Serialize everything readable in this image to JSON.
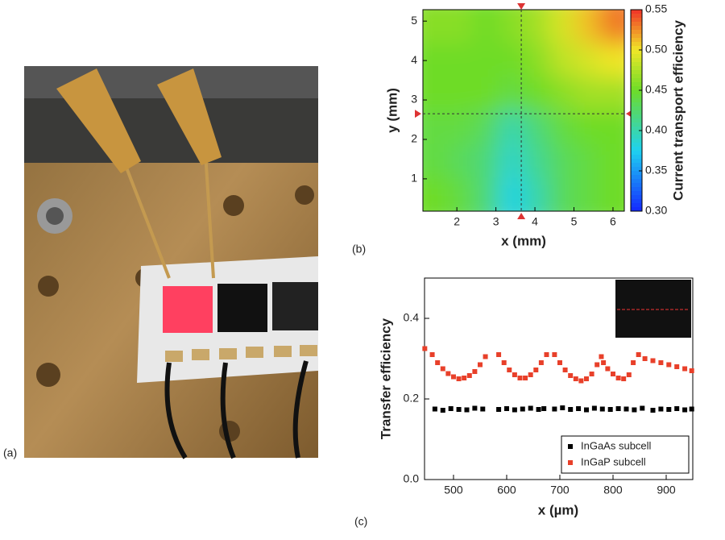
{
  "panel_labels": [
    "(a)",
    "(b)",
    "(c)"
  ],
  "chart_data": [
    {
      "type": "heatmap",
      "xlabel": "x (mm)",
      "ylabel": "y (mm)",
      "colorbar_label": "Current transport efficiency",
      "xlim": [
        1.13,
        6.29
      ],
      "xticks": [
        2,
        3,
        4,
        5,
        6
      ],
      "ylim": [
        0.18,
        5.29
      ],
      "yticks": [
        1,
        2,
        3,
        4,
        5
      ],
      "clim": [
        0.3,
        0.55
      ],
      "cticks": [
        {
          "value": 0.3,
          "label": "0.30"
        },
        0.35,
        {
          "value": 0.4,
          "label": "0.40"
        },
        0.45,
        {
          "value": 0.5,
          "label": "0.50"
        },
        0.55
      ],
      "crosshair": {
        "x": 3.65,
        "y": 2.65
      },
      "z": [
        [
          0.46,
          0.46,
          0.45,
          0.46,
          0.47,
          0.49,
          0.51,
          0.53
        ],
        [
          0.45,
          0.45,
          0.45,
          0.45,
          0.46,
          0.48,
          0.49,
          0.5
        ],
        [
          0.45,
          0.45,
          0.45,
          0.44,
          0.45,
          0.46,
          0.47,
          0.47
        ],
        [
          0.44,
          0.44,
          0.43,
          0.4,
          0.42,
          0.44,
          0.45,
          0.45
        ],
        [
          0.44,
          0.43,
          0.42,
          0.39,
          0.41,
          0.43,
          0.44,
          0.45
        ],
        [
          0.45,
          0.44,
          0.42,
          0.38,
          0.4,
          0.43,
          0.44,
          0.45
        ]
      ]
    },
    {
      "type": "scatter",
      "xlabel": "x (µm)",
      "ylabel": "Transfer efficiency",
      "xlim": [
        445.5,
        950
      ],
      "xticks": [
        500,
        600,
        700,
        800,
        900
      ],
      "ylim": [
        0,
        0.5
      ],
      "yticks": [
        {
          "value": 0,
          "label": "0.0"
        },
        0.2,
        0.4
      ],
      "legend": "lower right",
      "series": [
        {
          "name": "InGaAs subcell",
          "color": "#000000",
          "x": [
            465,
            480,
            495,
            510,
            525,
            540,
            555,
            585,
            600,
            615,
            630,
            645,
            660,
            670,
            690,
            705,
            720,
            735,
            750,
            765,
            780,
            795,
            810,
            825,
            840,
            855,
            875,
            890,
            905,
            920,
            935,
            948
          ],
          "values": [
            0.175,
            0.172,
            0.176,
            0.174,
            0.173,
            0.177,
            0.175,
            0.174,
            0.176,
            0.173,
            0.175,
            0.177,
            0.174,
            0.176,
            0.175,
            0.178,
            0.174,
            0.176,
            0.173,
            0.177,
            0.175,
            0.174,
            0.176,
            0.175,
            0.173,
            0.177,
            0.172,
            0.175,
            0.174,
            0.176,
            0.173,
            0.175
          ]
        },
        {
          "name": "InGaP subcell",
          "color": "#e8402a",
          "x": [
            446,
            460,
            470,
            480,
            490,
            500,
            510,
            520,
            530,
            540,
            550,
            560,
            585,
            595,
            605,
            615,
            625,
            635,
            645,
            655,
            665,
            675,
            690,
            700,
            710,
            720,
            730,
            740,
            750,
            760,
            770,
            778,
            782,
            790,
            800,
            810,
            820,
            830,
            838,
            848,
            860,
            875,
            890,
            905,
            920,
            935,
            948
          ],
          "values": [
            0.325,
            0.31,
            0.29,
            0.275,
            0.263,
            0.255,
            0.25,
            0.252,
            0.258,
            0.268,
            0.285,
            0.305,
            0.31,
            0.29,
            0.272,
            0.26,
            0.252,
            0.252,
            0.26,
            0.272,
            0.29,
            0.31,
            0.31,
            0.29,
            0.272,
            0.258,
            0.25,
            0.245,
            0.25,
            0.262,
            0.285,
            0.305,
            0.29,
            0.275,
            0.262,
            0.252,
            0.25,
            0.26,
            0.29,
            0.31,
            0.3,
            0.295,
            0.29,
            0.285,
            0.28,
            0.275,
            0.27
          ]
        }
      ]
    }
  ]
}
